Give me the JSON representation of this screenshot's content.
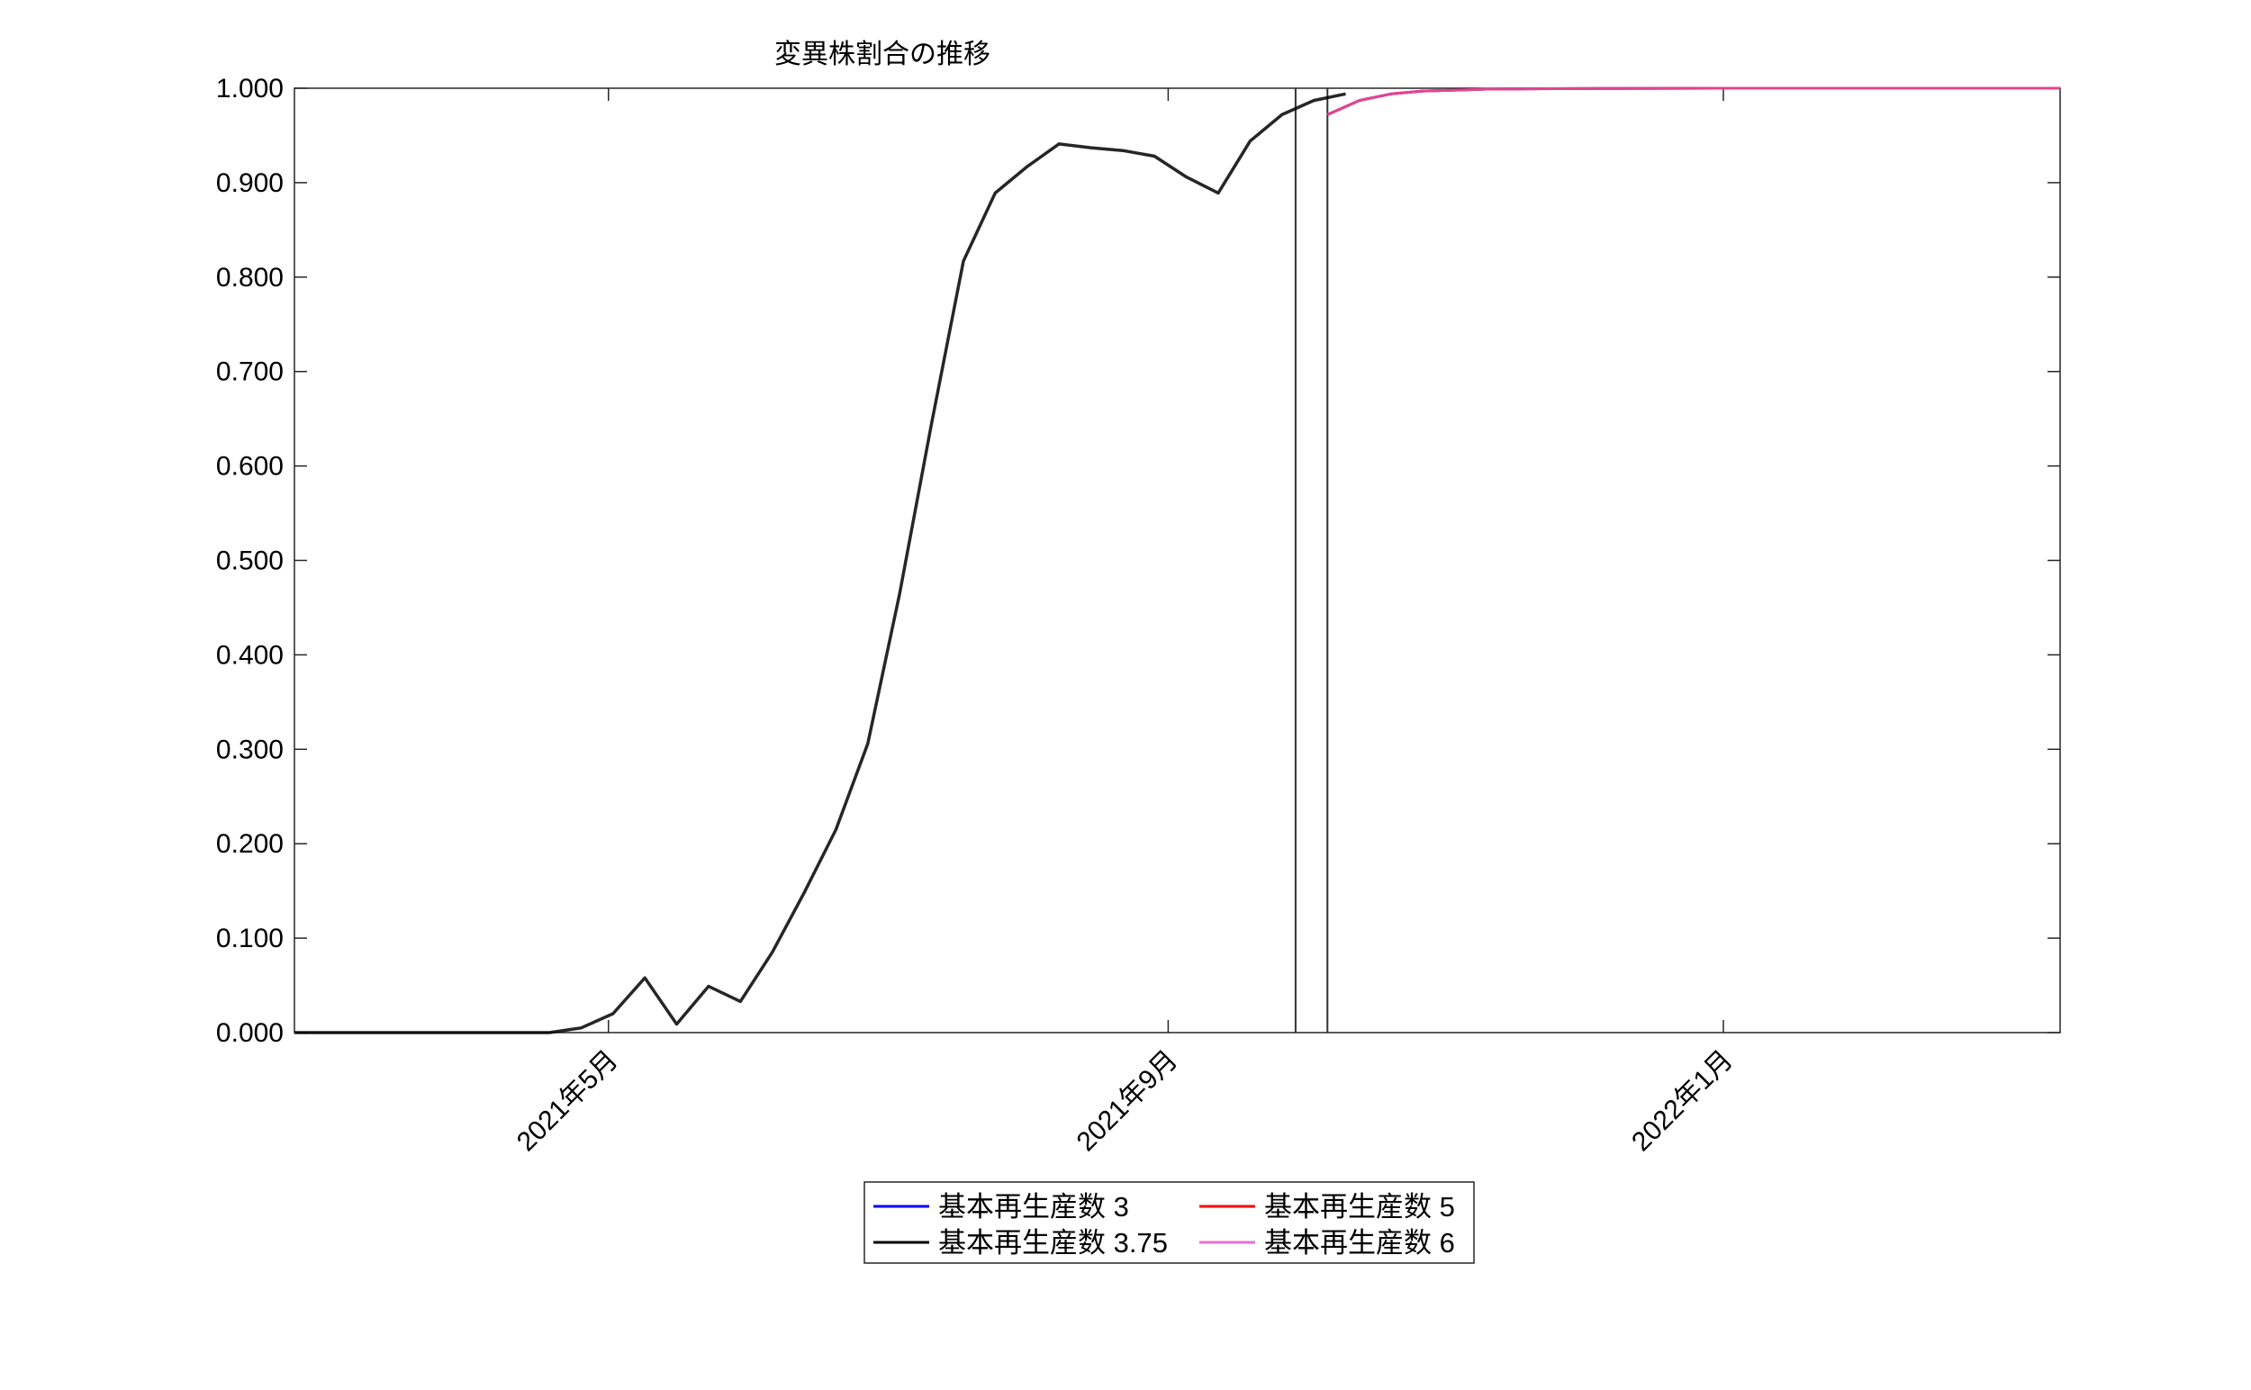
{
  "chart_data": {
    "type": "line",
    "title": "変異株割合の推移",
    "xlabel": "",
    "ylabel": "",
    "x_range": [
      "2021-02-21",
      "2022-03-16"
    ],
    "ylim": [
      0,
      1
    ],
    "yticks": [
      "0.000",
      "0.100",
      "0.200",
      "0.300",
      "0.400",
      "0.500",
      "0.600",
      "0.700",
      "0.800",
      "0.900",
      "1.000"
    ],
    "xticks": [
      {
        "date": "2021-05-01",
        "label": "2021年5月"
      },
      {
        "date": "2021-09-01",
        "label": "2021年9月"
      },
      {
        "date": "2022-01-01",
        "label": "2022年1月"
      }
    ],
    "grid": false,
    "vertical_lines": [
      "2021-09-29",
      "2021-10-06"
    ],
    "legend_position": "bottom",
    "legend_columns": 2,
    "series": [
      {
        "name": "基本再生産数 3",
        "color": "#0000ff",
        "x": [
          "2021-10-06",
          "2021-10-13",
          "2021-10-20",
          "2021-10-27",
          "2021-11-03",
          "2021-11-10",
          "2021-11-24",
          "2021-12-08",
          "2022-01-05",
          "2022-02-02",
          "2022-03-16"
        ],
        "values": [
          0.972,
          0.987,
          0.994,
          0.997,
          0.998,
          0.999,
          0.9995,
          0.9998,
          1.0,
          1.0,
          1.0
        ]
      },
      {
        "name": "基本再生産数 3.75",
        "color": "#000000",
        "x": [
          "2021-02-21",
          "2021-02-28",
          "2021-03-07",
          "2021-03-14",
          "2021-03-21",
          "2021-03-28",
          "2021-04-04",
          "2021-04-11",
          "2021-04-18",
          "2021-04-25",
          "2021-05-02",
          "2021-05-09",
          "2021-05-16",
          "2021-05-23",
          "2021-05-30",
          "2021-06-06",
          "2021-06-13",
          "2021-06-20",
          "2021-06-27",
          "2021-07-04",
          "2021-07-11",
          "2021-07-18",
          "2021-07-25",
          "2021-08-01",
          "2021-08-08",
          "2021-08-15",
          "2021-08-22",
          "2021-08-29",
          "2021-09-05",
          "2021-09-12",
          "2021-09-19",
          "2021-09-26",
          "2021-10-03",
          "2021-10-10"
        ],
        "values": [
          0,
          0,
          0,
          0,
          0,
          0,
          0,
          0,
          0,
          0.005,
          0.02,
          0.058,
          0.009,
          0.049,
          0.033,
          0.085,
          0.148,
          0.215,
          0.306,
          0.465,
          0.645,
          0.817,
          0.889,
          0.917,
          0.941,
          0.937,
          0.934,
          0.928,
          0.906,
          0.889,
          0.944,
          0.972,
          0.987,
          0.994
        ]
      },
      {
        "name": "基本再生産数 5",
        "color": "#ff0000",
        "x": [
          "2021-10-06",
          "2021-10-13",
          "2021-10-20",
          "2021-10-27",
          "2021-11-03",
          "2021-11-10",
          "2021-11-24",
          "2021-12-08",
          "2022-01-05",
          "2022-02-02",
          "2022-03-16"
        ],
        "values": [
          0.972,
          0.987,
          0.994,
          0.997,
          0.998,
          0.999,
          0.9995,
          0.9998,
          1.0,
          1.0,
          1.0
        ]
      },
      {
        "name": "基本再生産数 6",
        "color": "#e86fd8",
        "x": [
          "2021-10-06",
          "2021-10-13",
          "2021-10-20",
          "2021-10-27",
          "2021-11-03",
          "2021-11-10",
          "2021-11-24",
          "2021-12-08",
          "2022-01-05",
          "2022-02-02",
          "2022-03-16"
        ],
        "values": [
          0.972,
          0.987,
          0.994,
          0.997,
          0.998,
          0.999,
          0.9995,
          0.9998,
          1.0,
          1.0,
          1.0
        ]
      }
    ]
  }
}
